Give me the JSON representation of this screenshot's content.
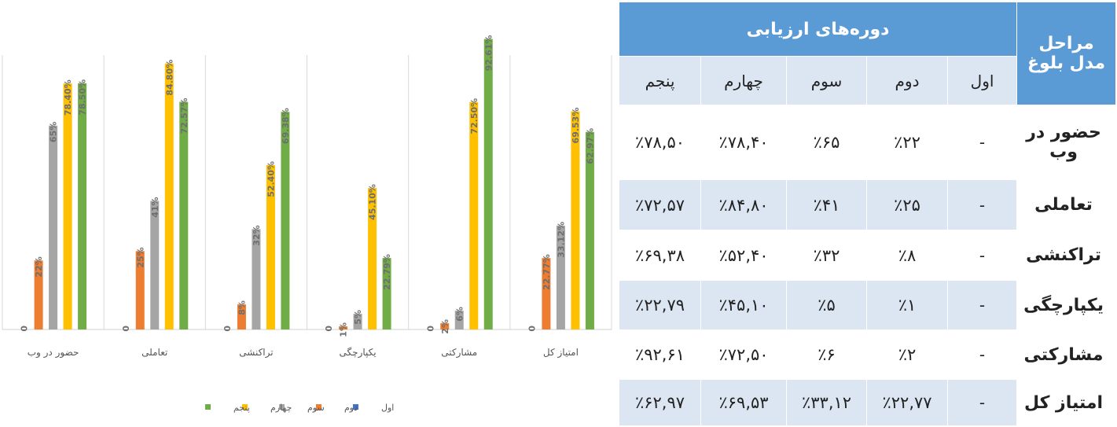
{
  "chart_data": {
    "type": "bar",
    "categories": [
      "حضور در وب",
      "تعاملی",
      "تراکنشی",
      "یکپارچگی",
      "مشارکتی",
      "امتیاز کل"
    ],
    "series": [
      {
        "name": "اول",
        "color": "#4472c4",
        "values": [
          0,
          0,
          0,
          0,
          0,
          0
        ],
        "labels": [
          "0",
          "0",
          "0",
          "0",
          "0",
          "0"
        ]
      },
      {
        "name": "دوم",
        "color": "#ed7d31",
        "values": [
          22,
          25,
          8,
          1,
          2,
          22.77
        ],
        "labels": [
          "22%",
          "25%",
          "8%",
          "1%",
          "2%",
          "22.77%"
        ]
      },
      {
        "name": "سوم",
        "color": "#a5a5a5",
        "values": [
          65,
          41,
          32,
          5,
          6,
          33.12
        ],
        "labels": [
          "65%",
          "41%",
          "32%",
          "5%",
          "6%",
          "33.12%"
        ]
      },
      {
        "name": "چهارم",
        "color": "#ffc000",
        "values": [
          78.4,
          84.8,
          52.4,
          45.1,
          72.5,
          69.53
        ],
        "labels": [
          "78.40%",
          "84.80%",
          "52.40%",
          "45.10%",
          "72.50%",
          "69.53%"
        ]
      },
      {
        "name": "پنجم",
        "color": "#70ad47",
        "values": [
          78.5,
          72.57,
          69.38,
          22.79,
          92.61,
          62.97
        ],
        "labels": [
          "78.50%",
          "72.57%",
          "69.38%",
          "22.79%",
          "92.61%",
          "62.97%"
        ]
      }
    ],
    "ylim": [
      0,
      90
    ],
    "grid": false,
    "legend_position": "bottom"
  },
  "table": {
    "header_stage": "مراحل مدل بلوغ",
    "header_periods": "دوره‌های ارزیابی",
    "period_labels": [
      "اول",
      "دوم",
      "سوم",
      "چهارم",
      "پنجم"
    ],
    "rows": [
      {
        "name": "حضور در وب",
        "values": [
          "-",
          "٪۲۲",
          "٪۶۵",
          "٪۷۸,۴۰",
          "٪۷۸,۵۰"
        ]
      },
      {
        "name": "تعاملی",
        "values": [
          "-",
          "٪۲۵",
          "٪۴۱",
          "٪۸۴,۸۰",
          "٪۷۲,۵۷"
        ]
      },
      {
        "name": "تراکنشی",
        "values": [
          "-",
          "٪۸",
          "٪۳۲",
          "٪۵۲,۴۰",
          "٪۶۹,۳۸"
        ]
      },
      {
        "name": "یکپارچگی",
        "values": [
          "-",
          "٪۱",
          "٪۵",
          "٪۴۵,۱۰",
          "٪۲۲,۷۹"
        ]
      },
      {
        "name": "مشارکتی",
        "values": [
          "-",
          "٪۲",
          "٪۶",
          "٪۷۲,۵۰",
          "٪۹۲,۶۱"
        ]
      },
      {
        "name": "امتیاز کل",
        "values": [
          "-",
          "٪۲۲,۷۷",
          "٪۳۳,۱۲",
          "٪۶۹,۵۳",
          "٪۶۲,۹۷"
        ]
      }
    ]
  }
}
